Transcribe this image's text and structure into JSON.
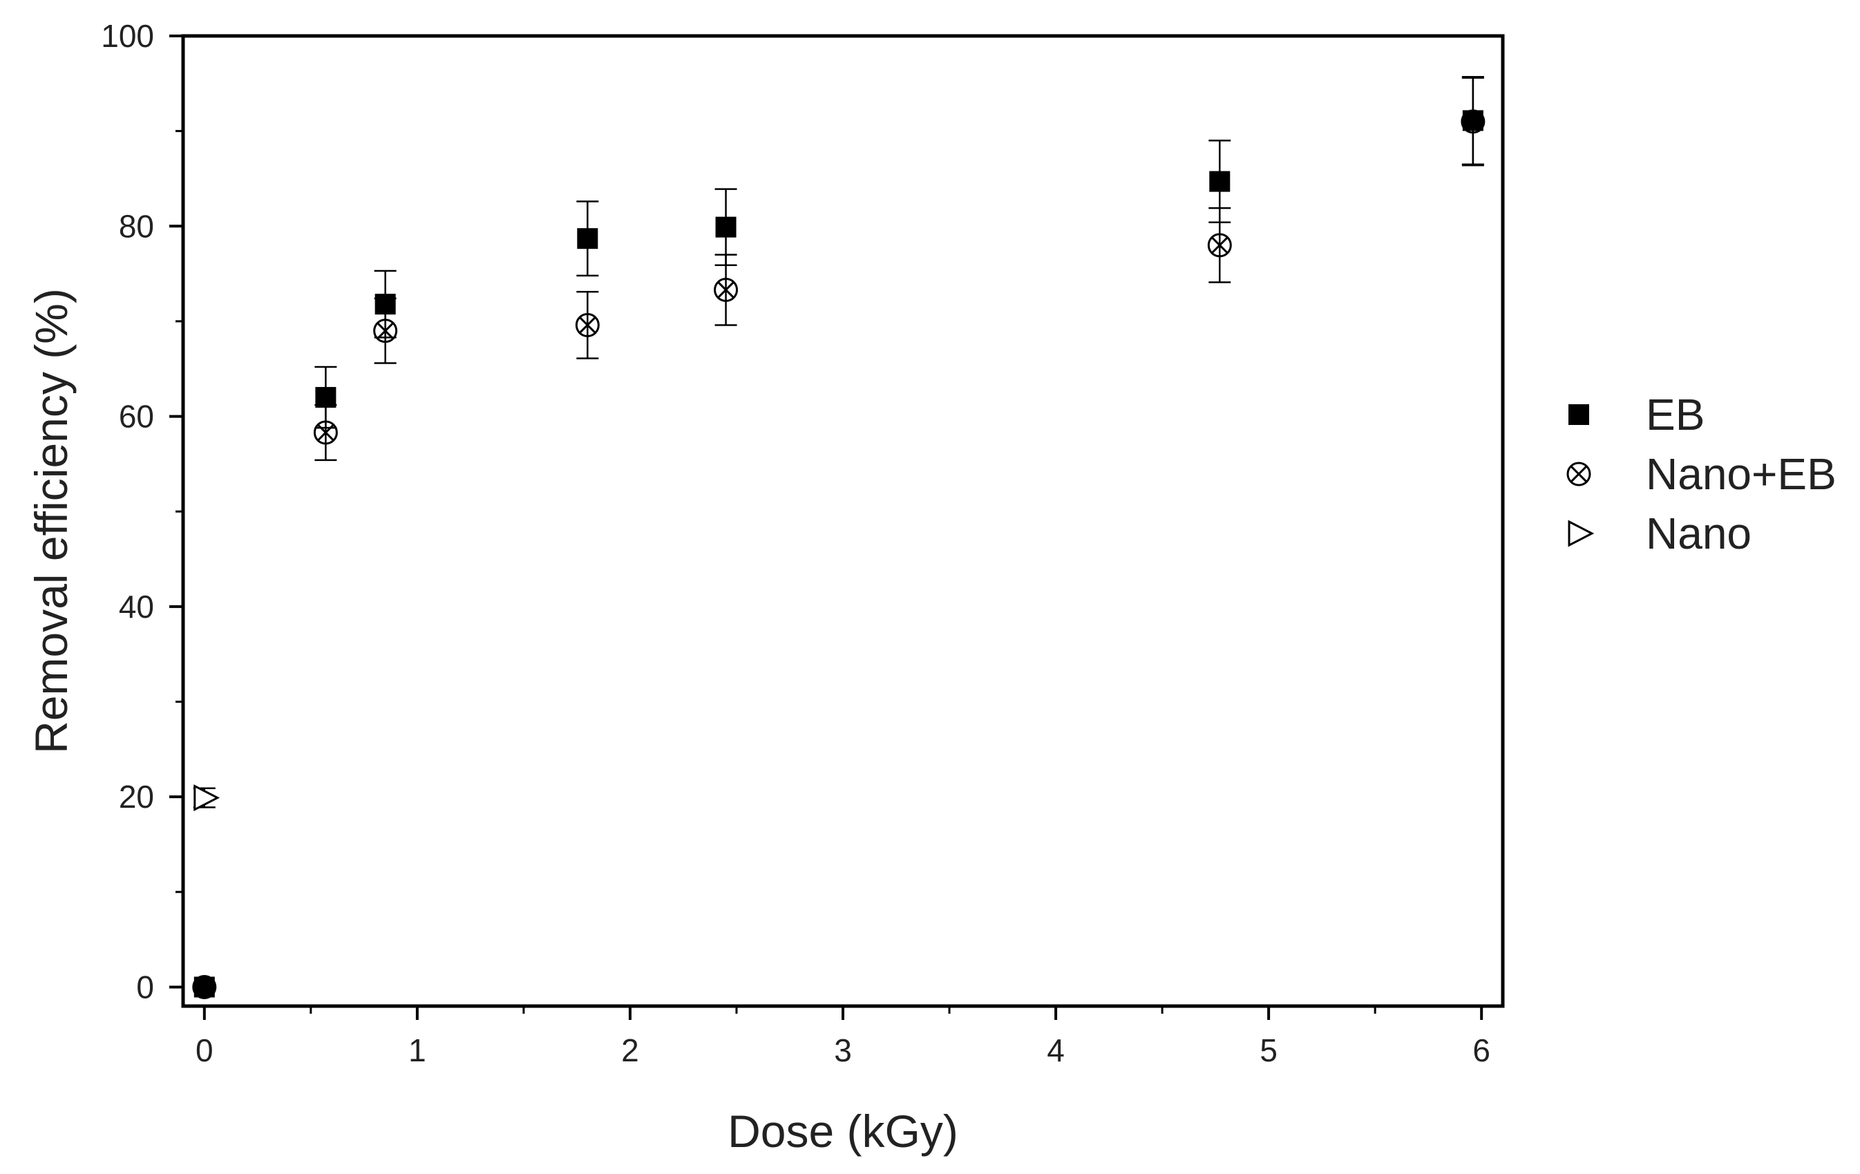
{
  "chart_data": {
    "type": "scatter",
    "xlabel": "Dose (kGy)",
    "ylabel": "Removal efficiency (%)",
    "xlim": [
      -0.1,
      6.1
    ],
    "ylim": [
      -2,
      100
    ],
    "xticks": [
      0,
      1,
      2,
      3,
      4,
      5,
      6
    ],
    "yticks": [
      0,
      20,
      40,
      60,
      80,
      100
    ],
    "x_tick_labels": [
      "0",
      "1",
      "2",
      "3",
      "4",
      "5",
      "6"
    ],
    "y_tick_labels": [
      "0",
      "20",
      "40",
      "60",
      "80",
      "100"
    ],
    "legend_position": "right",
    "grid": false,
    "series": [
      {
        "name": "EB",
        "marker": "filled-square",
        "color": "#000000",
        "points": [
          {
            "x": 0,
            "y": 0,
            "err": 0
          },
          {
            "x": 0.57,
            "y": 62,
            "err": 3.2
          },
          {
            "x": 0.85,
            "y": 71.8,
            "err": 3.5
          },
          {
            "x": 1.8,
            "y": 78.7,
            "err": 3.9
          },
          {
            "x": 2.45,
            "y": 79.9,
            "err": 4.0
          },
          {
            "x": 4.77,
            "y": 84.7,
            "err": 4.3
          },
          {
            "x": 5.96,
            "y": 91.1,
            "err": 4.6
          }
        ]
      },
      {
        "name": "Nano+EB",
        "marker": "circle-x",
        "color": "#000000",
        "points": [
          {
            "x": 0,
            "y": 0,
            "err": 0
          },
          {
            "x": 0.57,
            "y": 58.3,
            "err": 2.9
          },
          {
            "x": 0.85,
            "y": 69,
            "err": 3.4
          },
          {
            "x": 1.8,
            "y": 69.6,
            "err": 3.5
          },
          {
            "x": 2.45,
            "y": 73.3,
            "err": 3.7
          },
          {
            "x": 4.77,
            "y": 78,
            "err": 3.9
          },
          {
            "x": 5.96,
            "y": 91,
            "err": 4.6
          }
        ]
      },
      {
        "name": "Nano",
        "marker": "open-triangle-right",
        "color": "#000000",
        "points": [
          {
            "x": 0,
            "y": 19.9,
            "err": 1.0
          }
        ]
      }
    ]
  }
}
